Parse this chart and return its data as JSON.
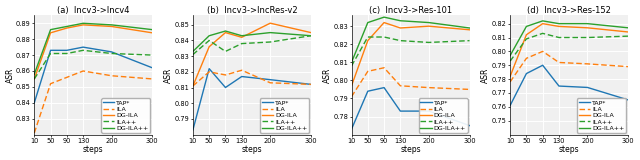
{
  "steps": [
    10,
    50,
    90,
    130,
    200,
    300
  ],
  "subplots": [
    {
      "title": "(a)  Incv3->Incv4",
      "ylabel": "ASR",
      "ylim": [
        0.82,
        0.895
      ],
      "yticks": [
        0.83,
        0.84,
        0.85,
        0.86,
        0.87,
        0.88,
        0.89
      ],
      "series": {
        "TAP*": {
          "color": "#1f77b4",
          "linestyle": "-",
          "values": [
            0.84,
            0.873,
            0.873,
            0.875,
            0.872,
            0.862
          ]
        },
        "ILA": {
          "color": "#ff7f0e",
          "linestyle": "--",
          "values": [
            0.821,
            0.852,
            0.856,
            0.86,
            0.857,
            0.855
          ]
        },
        "DG-ILA": {
          "color": "#ff7f0e",
          "linestyle": "-",
          "values": [
            0.855,
            0.884,
            0.887,
            0.889,
            0.888,
            0.884
          ]
        },
        "ILA++": {
          "color": "#2ca02c",
          "linestyle": "--",
          "values": [
            0.855,
            0.871,
            0.871,
            0.873,
            0.871,
            0.87
          ]
        },
        "DG-ILA++": {
          "color": "#2ca02c",
          "linestyle": "-",
          "values": [
            0.858,
            0.886,
            0.888,
            0.89,
            0.889,
            0.886
          ]
        }
      }
    },
    {
      "title": "(b)  Incv3->IncRes-v2",
      "ylabel": "ASR",
      "ylim": [
        0.78,
        0.856
      ],
      "yticks": [
        0.79,
        0.8,
        0.81,
        0.82,
        0.83,
        0.84,
        0.85
      ],
      "series": {
        "TAP*": {
          "color": "#1f77b4",
          "linestyle": "-",
          "values": [
            0.783,
            0.822,
            0.81,
            0.817,
            0.815,
            0.812
          ]
        },
        "ILA": {
          "color": "#ff7f0e",
          "linestyle": "--",
          "values": [
            0.811,
            0.82,
            0.818,
            0.821,
            0.813,
            0.812
          ]
        },
        "DG-ILA": {
          "color": "#ff7f0e",
          "linestyle": "-",
          "values": [
            0.811,
            0.836,
            0.845,
            0.842,
            0.851,
            0.845
          ]
        },
        "ILA++": {
          "color": "#2ca02c",
          "linestyle": "--",
          "values": [
            0.831,
            0.84,
            0.833,
            0.838,
            0.839,
            0.843
          ]
        },
        "DG-ILA++": {
          "color": "#2ca02c",
          "linestyle": "-",
          "values": [
            0.833,
            0.843,
            0.846,
            0.843,
            0.845,
            0.843
          ]
        }
      }
    },
    {
      "title": "(c)  Incv3->Res-101",
      "ylabel": "ASR",
      "ylim": [
        0.77,
        0.836
      ],
      "yticks": [
        0.78,
        0.79,
        0.8,
        0.81,
        0.82,
        0.83
      ],
      "series": {
        "TAP*": {
          "color": "#1f77b4",
          "linestyle": "-",
          "values": [
            0.773,
            0.794,
            0.796,
            0.783,
            0.783,
            0.775
          ]
        },
        "ILA": {
          "color": "#ff7f0e",
          "linestyle": "--",
          "values": [
            0.791,
            0.805,
            0.807,
            0.797,
            0.796,
            0.795
          ]
        },
        "DG-ILA": {
          "color": "#ff7f0e",
          "linestyle": "-",
          "values": [
            0.797,
            0.822,
            0.832,
            0.829,
            0.83,
            0.828
          ]
        },
        "ILA++": {
          "color": "#2ca02c",
          "linestyle": "--",
          "values": [
            0.808,
            0.824,
            0.824,
            0.822,
            0.821,
            0.822
          ]
        },
        "DG-ILA++": {
          "color": "#2ca02c",
          "linestyle": "-",
          "values": [
            0.81,
            0.832,
            0.835,
            0.833,
            0.832,
            0.829
          ]
        }
      }
    },
    {
      "title": "(d)  Incv3->Res-152",
      "ylabel": "ASR",
      "ylim": [
        0.74,
        0.826
      ],
      "yticks": [
        0.75,
        0.76,
        0.77,
        0.78,
        0.79,
        0.8,
        0.81,
        0.82
      ],
      "series": {
        "TAP*": {
          "color": "#1f77b4",
          "linestyle": "-",
          "values": [
            0.761,
            0.784,
            0.79,
            0.775,
            0.774,
            0.765
          ]
        },
        "ILA": {
          "color": "#ff7f0e",
          "linestyle": "--",
          "values": [
            0.778,
            0.795,
            0.8,
            0.792,
            0.791,
            0.789
          ]
        },
        "DG-ILA": {
          "color": "#ff7f0e",
          "linestyle": "-",
          "values": [
            0.782,
            0.812,
            0.82,
            0.818,
            0.817,
            0.814
          ]
        },
        "ILA++": {
          "color": "#2ca02c",
          "linestyle": "--",
          "values": [
            0.793,
            0.809,
            0.813,
            0.81,
            0.81,
            0.811
          ]
        },
        "DG-ILA++": {
          "color": "#2ca02c",
          "linestyle": "-",
          "values": [
            0.797,
            0.818,
            0.822,
            0.82,
            0.82,
            0.817
          ]
        }
      }
    }
  ],
  "xlabel": "steps",
  "fig_width": 6.4,
  "fig_height": 1.6,
  "dpi": 100,
  "bg_color": "#f0f0f0",
  "grid_color": "white",
  "title_fontsize": 6.0,
  "label_fontsize": 5.5,
  "tick_fontsize": 4.8,
  "legend_fontsize": 4.5,
  "linewidth": 1.0
}
